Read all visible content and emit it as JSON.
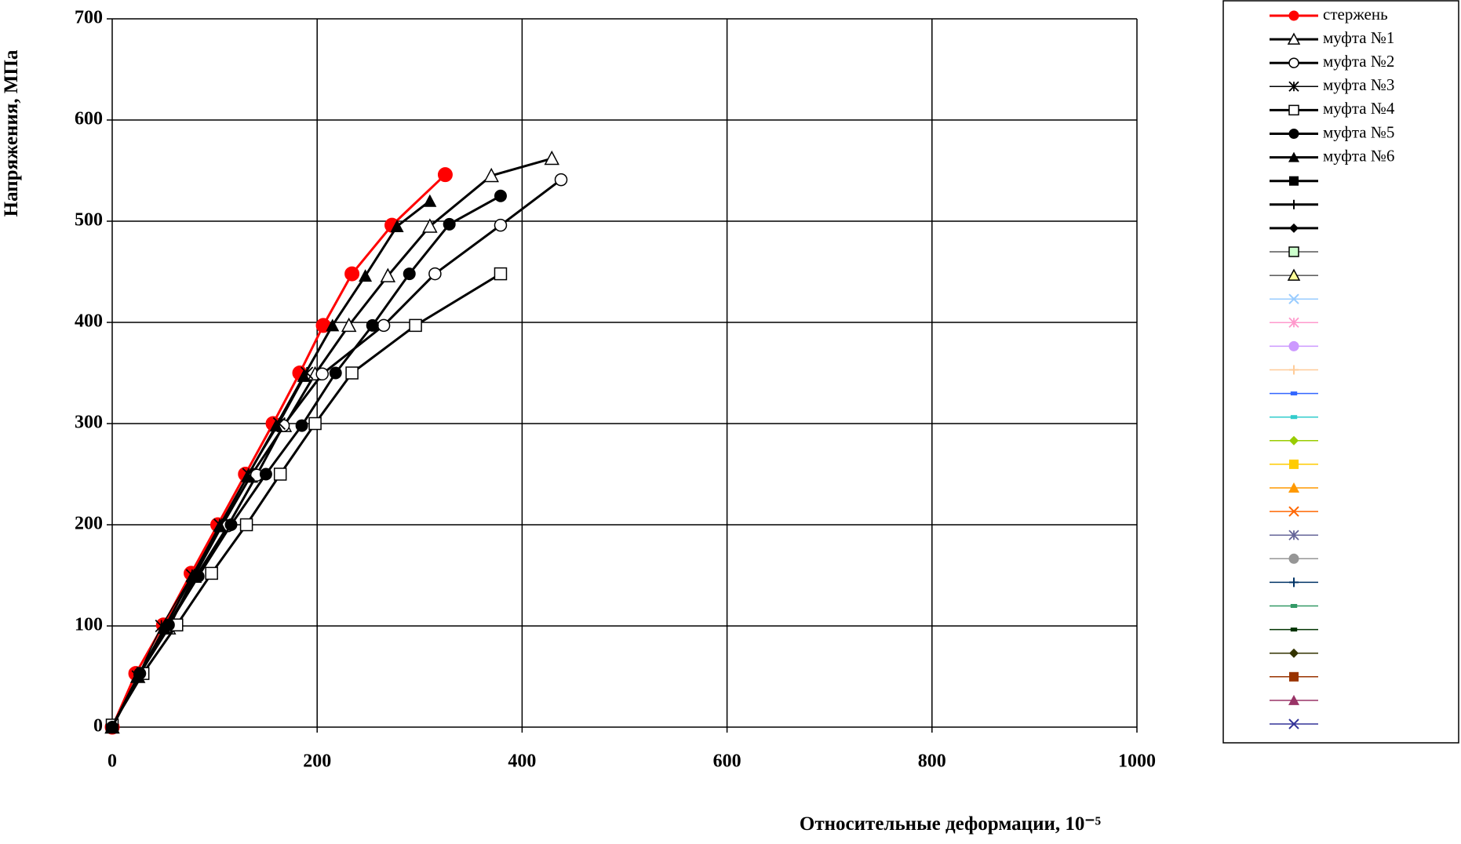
{
  "chart_data": {
    "type": "line",
    "x_label": "Относительные деформации, 10⁻⁵",
    "y_label": "Напряжения, МПа",
    "xlim": [
      0,
      1000
    ],
    "xticks": [
      0,
      200,
      400,
      600,
      800,
      1000
    ],
    "ylim": [
      0,
      700
    ],
    "yticks": [
      0,
      100,
      200,
      300,
      400,
      500,
      600,
      700
    ],
    "grid": true,
    "legend": "right",
    "series": [
      {
        "name": "стержень",
        "color": "#ff0000",
        "marker": "circle-filled",
        "line_width": 3,
        "x": [
          0,
          23,
          50,
          77,
          103,
          130,
          157,
          183,
          206,
          234,
          273,
          325
        ],
        "values": [
          0,
          53,
          101,
          152,
          200,
          250,
          300,
          350,
          397,
          448,
          496,
          546
        ]
      },
      {
        "name": "муфта №1",
        "color": "#000000",
        "marker": "triangle-open",
        "line_width": 3,
        "x": [
          0,
          25,
          55,
          80,
          107,
          135,
          168,
          198,
          231,
          269,
          310,
          370,
          429
        ],
        "values": [
          0,
          50,
          98,
          149,
          199,
          248,
          298,
          349,
          397,
          446,
          495,
          545,
          562
        ]
      },
      {
        "name": "муфта №2",
        "color": "#000000",
        "marker": "circle-open",
        "line_width": 3,
        "x": [
          0,
          27,
          53,
          82,
          113,
          141,
          167,
          205,
          265,
          315,
          379,
          438
        ],
        "values": [
          0,
          52,
          98,
          149,
          199,
          249,
          298,
          349,
          397,
          448,
          496,
          541
        ]
      },
      {
        "name": "муфта №3",
        "color": "#000000",
        "marker": "asterisk",
        "line_width": 1.5,
        "x": [
          0,
          25,
          48,
          78,
          105,
          133,
          163,
          190
        ],
        "values": [
          0,
          50,
          100,
          150,
          200,
          250,
          300,
          350
        ]
      },
      {
        "name": "муфта №4",
        "color": "#000000",
        "marker": "square-open",
        "line_width": 3,
        "x": [
          0,
          30,
          63,
          97,
          131,
          164,
          198,
          234,
          296,
          379
        ],
        "values": [
          2,
          53,
          101,
          152,
          200,
          250,
          300,
          350,
          397,
          448
        ]
      },
      {
        "name": "муфта №5",
        "color": "#000000",
        "marker": "circle-filled",
        "line_width": 3,
        "x": [
          0,
          27,
          55,
          84,
          116,
          150,
          185,
          218,
          254,
          290,
          329,
          379
        ],
        "values": [
          0,
          53,
          101,
          149,
          200,
          250,
          298,
          350,
          397,
          448,
          497,
          525
        ]
      },
      {
        "name": "муфта №6",
        "color": "#000000",
        "marker": "triangle-filled",
        "line_width": 3,
        "x": [
          0,
          25,
          51,
          78,
          105,
          132,
          160,
          187,
          215,
          247,
          278,
          310
        ],
        "values": [
          0,
          50,
          98,
          149,
          199,
          248,
          298,
          347,
          397,
          446,
          495,
          520
        ]
      },
      {
        "color": "#000000",
        "marker": "square-filled",
        "line_width": 3
      },
      {
        "color": "#000000",
        "marker": "plus",
        "line_width": 3
      },
      {
        "color": "#000000",
        "marker": "diamond-filled",
        "line_width": 3
      },
      {
        "color": "#000000",
        "marker": "square-pale-green",
        "line_width": 1
      },
      {
        "color": "#000000",
        "marker": "triangle-pale-yellow",
        "line_width": 1
      },
      {
        "color": "#99ccff",
        "marker": "x",
        "line_width": 1.5
      },
      {
        "color": "#ff99cc",
        "marker": "asterisk",
        "line_width": 1.5
      },
      {
        "color": "#cc99ff",
        "marker": "circle-filled",
        "line_width": 1.5
      },
      {
        "color": "#ffcc99",
        "marker": "plus",
        "line_width": 1.5
      },
      {
        "color": "#3366ff",
        "marker": "dash",
        "line_width": 1.5
      },
      {
        "color": "#33cccc",
        "marker": "dash",
        "line_width": 1.5
      },
      {
        "color": "#99cc00",
        "marker": "diamond-filled",
        "line_width": 1.5
      },
      {
        "color": "#ffcc00",
        "marker": "square-filled",
        "line_width": 1.5
      },
      {
        "color": "#ff9900",
        "marker": "triangle-filled",
        "line_width": 1.5
      },
      {
        "color": "#ff6600",
        "marker": "x",
        "line_width": 1.5
      },
      {
        "color": "#666699",
        "marker": "asterisk",
        "line_width": 1.5
      },
      {
        "color": "#969696",
        "marker": "circle-filled",
        "line_width": 1.5
      },
      {
        "color": "#003366",
        "marker": "plus",
        "line_width": 1.5
      },
      {
        "color": "#339966",
        "marker": "dash",
        "line_width": 1.5
      },
      {
        "color": "#003300",
        "marker": "dash",
        "line_width": 1.5
      },
      {
        "color": "#333300",
        "marker": "diamond-filled",
        "line_width": 1.5
      },
      {
        "color": "#993300",
        "marker": "square-filled",
        "line_width": 1.5
      },
      {
        "color": "#993366",
        "marker": "triangle-filled",
        "line_width": 1.5
      },
      {
        "color": "#333399",
        "marker": "x",
        "line_width": 1.5
      }
    ]
  }
}
